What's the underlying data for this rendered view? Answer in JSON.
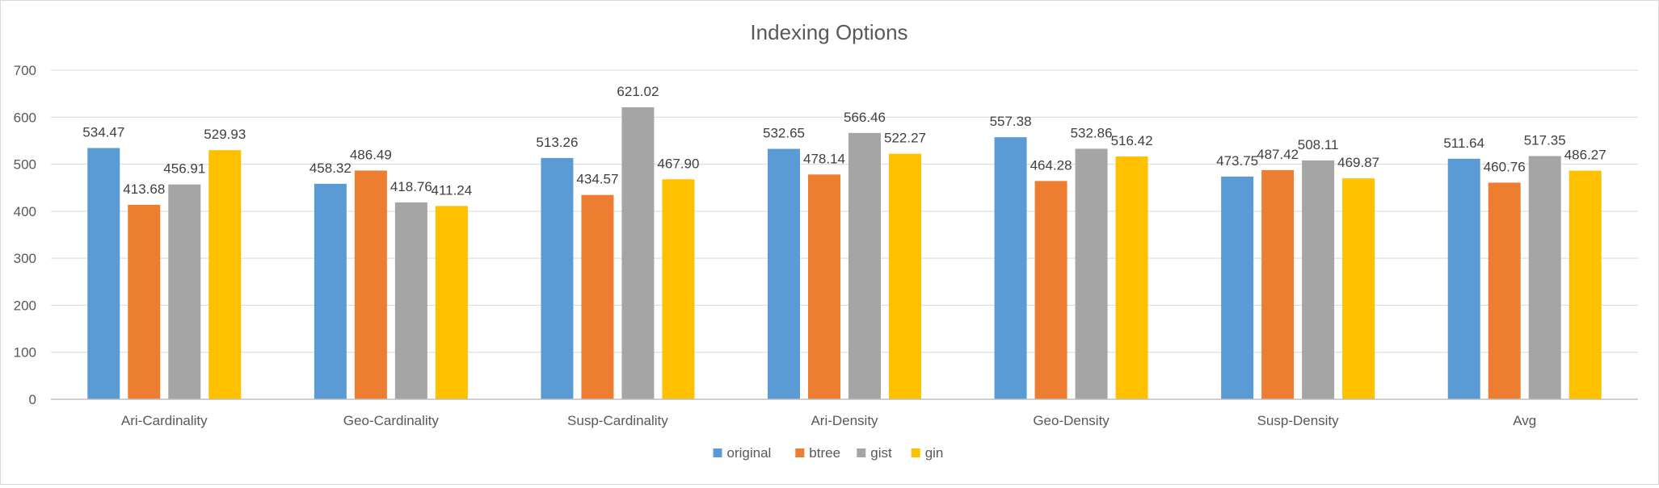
{
  "chart_data": {
    "type": "bar",
    "title": "Indexing Options",
    "xlabel": "",
    "ylabel": "",
    "ylim": [
      0,
      700
    ],
    "yticks": [
      0,
      100,
      200,
      300,
      400,
      500,
      600,
      700
    ],
    "ytick_labels": [
      "0",
      "100",
      "200",
      "300",
      "400",
      "500",
      "600",
      "700"
    ],
    "grid": true,
    "legend_position": "bottom",
    "categories": [
      "Ari-Cardinality",
      "Geo-Cardinality",
      "Susp-Cardinality",
      "Ari-Density",
      "Geo-Density",
      "Susp-Density",
      "Avg"
    ],
    "series": [
      {
        "name": "original",
        "color": "#5b9bd5",
        "values": [
          534.47,
          458.32,
          513.26,
          532.65,
          557.38,
          473.75,
          511.64
        ],
        "labels": [
          "534.47",
          "458.32",
          "513.26",
          "532.65",
          "557.38",
          "473.75",
          "511.64"
        ]
      },
      {
        "name": "btree",
        "color": "#ed7d31",
        "values": [
          413.68,
          486.49,
          434.57,
          478.14,
          464.28,
          487.42,
          460.76
        ],
        "labels": [
          "413.68",
          "486.49",
          "434.57",
          "478.14",
          "464.28",
          "487.42",
          "460.76"
        ]
      },
      {
        "name": "gist",
        "color": "#a5a5a5",
        "values": [
          456.91,
          418.76,
          621.02,
          566.46,
          532.86,
          508.11,
          517.35
        ],
        "labels": [
          "456.91",
          "418.76",
          "621.02",
          "566.46",
          "532.86",
          "508.11",
          "517.35"
        ]
      },
      {
        "name": "gin",
        "color": "#ffc000",
        "values": [
          529.93,
          411.24,
          467.9,
          522.27,
          516.42,
          469.87,
          486.27
        ],
        "labels": [
          "529.93",
          "411.24",
          "467.90",
          "522.27",
          "516.42",
          "469.87",
          "486.27"
        ]
      }
    ]
  }
}
